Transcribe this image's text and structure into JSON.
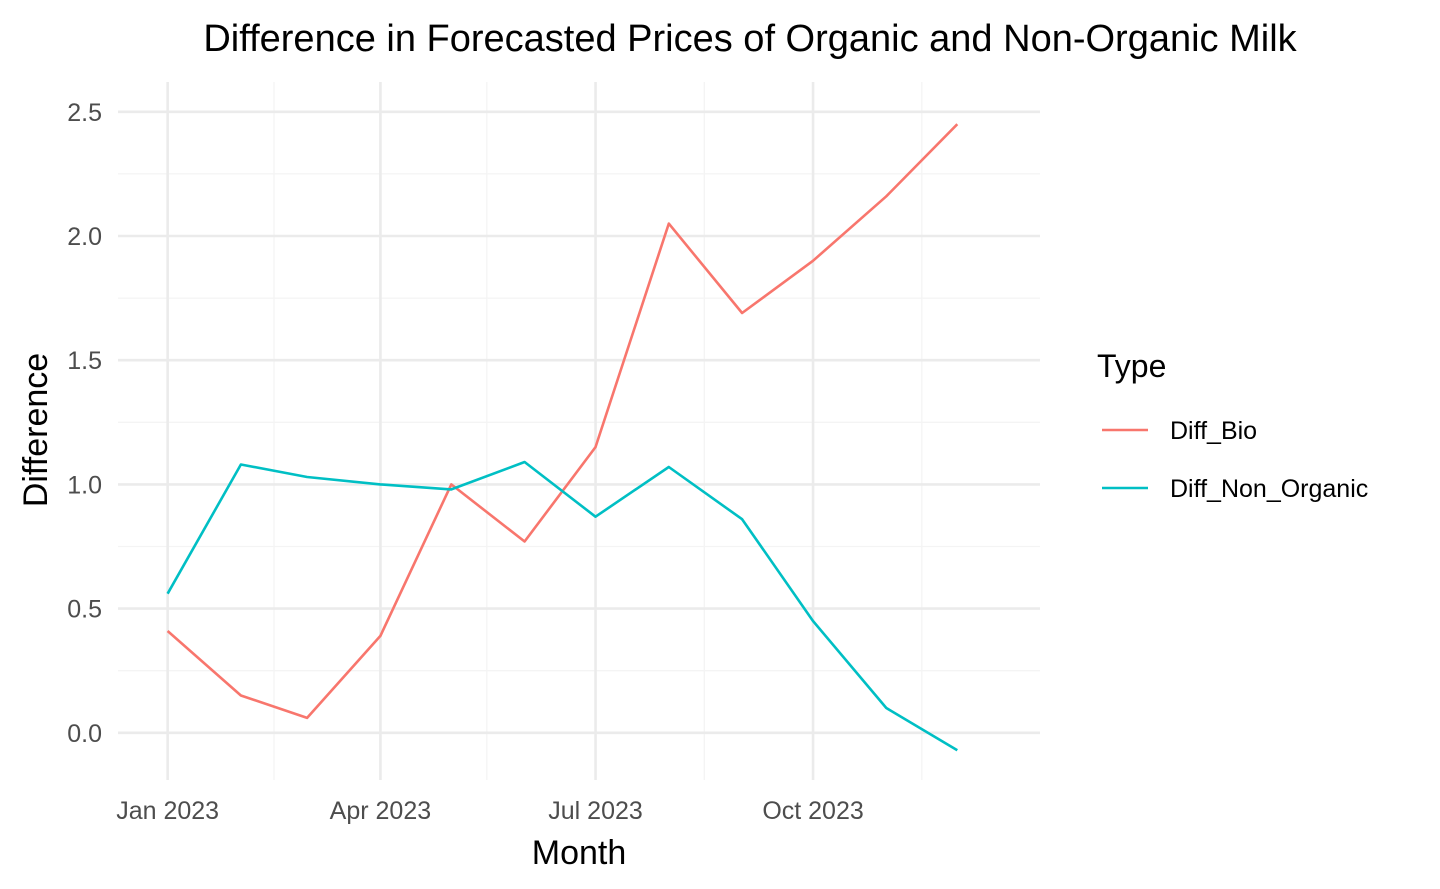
{
  "chart_data": {
    "type": "line",
    "title": "Difference in Forecasted Prices of Organic and Non-Organic Milk",
    "xlabel": "Month",
    "ylabel": "Difference",
    "x": [
      "2023-01-01",
      "2023-02-01",
      "2023-03-01",
      "2023-04-01",
      "2023-05-01",
      "2023-06-01",
      "2023-07-01",
      "2023-08-01",
      "2023-09-01",
      "2023-10-01",
      "2023-11-01",
      "2023-12-01"
    ],
    "xticks": [
      {
        "date": "2023-01-01",
        "label": "Jan 2023"
      },
      {
        "date": "2023-04-01",
        "label": "Apr 2023"
      },
      {
        "date": "2023-07-01",
        "label": "Jul 2023"
      },
      {
        "date": "2023-10-01",
        "label": "Oct 2023"
      }
    ],
    "xminor": [
      "2023-02-15",
      "2023-05-16",
      "2023-08-16",
      "2023-11-16"
    ],
    "xlim": [
      "2022-12-11",
      "2024-01-05"
    ],
    "ylim": [
      -0.19,
      2.62
    ],
    "yticks": [
      0.0,
      0.5,
      1.0,
      1.5,
      2.0,
      2.5
    ],
    "ytick_labels": [
      "0.0",
      "0.5",
      "1.0",
      "1.5",
      "2.0",
      "2.5"
    ],
    "yminor": [
      0.25,
      0.75,
      1.25,
      1.75,
      2.25
    ],
    "legend": {
      "title": "Type",
      "position": "right"
    },
    "series": [
      {
        "name": "Diff_Bio",
        "color": "#F8766D",
        "values": [
          0.41,
          0.15,
          0.06,
          0.39,
          1.0,
          0.77,
          1.15,
          2.05,
          1.69,
          1.9,
          2.16,
          2.45
        ]
      },
      {
        "name": "Diff_Non_Organic",
        "color": "#00BFC4",
        "values": [
          0.56,
          1.08,
          1.03,
          1.0,
          0.98,
          1.09,
          0.87,
          1.07,
          0.86,
          0.45,
          0.1,
          -0.07
        ]
      }
    ],
    "grid": true
  }
}
